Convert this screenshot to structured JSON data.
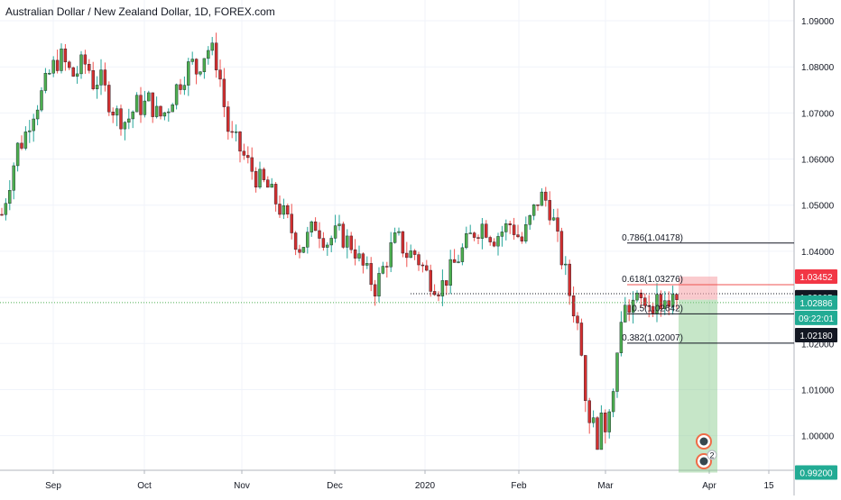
{
  "header": {
    "title": "Australian Dollar / New Zealand Dollar, 1D, FOREX.com"
  },
  "colors": {
    "up": "#26a69a",
    "up_fill": "#4caf50",
    "down": "#ef5350",
    "down_fill": "#d32f2f",
    "red_tag": "#f23645",
    "green_tag": "#22ab94",
    "black_tag": "#131722",
    "grid": "#f0f3fa"
  },
  "chart_data": {
    "type": "candlestick",
    "title": "Australian Dollar / New Zealand Dollar, 1D, FOREX.com",
    "y_axis": {
      "ylim": [
        0.9925,
        1.0945
      ],
      "ticks": [
        "1.09000",
        "1.08000",
        "1.07000",
        "1.06000",
        "1.05000",
        "1.04000",
        "1.03000",
        "1.02000",
        "1.01000",
        "1.00000"
      ],
      "tick_values": [
        1.09,
        1.08,
        1.07,
        1.06,
        1.05,
        1.04,
        1.03,
        1.02,
        1.01,
        1.0
      ]
    },
    "x_axis": {
      "labels": [
        "Sep",
        "Oct",
        "Nov",
        "Dec",
        "2020",
        "Feb",
        "Mar",
        "Apr",
        "15"
      ]
    },
    "price_path": [
      [
        0,
        1.048
      ],
      [
        6,
        1.053
      ],
      [
        12,
        1.058
      ],
      [
        18,
        1.063
      ],
      [
        24,
        1.064
      ],
      [
        30,
        1.068
      ],
      [
        36,
        1.071
      ],
      [
        42,
        1.073
      ],
      [
        48,
        1.076
      ],
      [
        54,
        1.079
      ],
      [
        60,
        1.081
      ],
      [
        66,
        1.082
      ],
      [
        72,
        1.08
      ],
      [
        78,
        1.078
      ],
      [
        84,
        1.079
      ],
      [
        90,
        1.081
      ],
      [
        96,
        1.08
      ],
      [
        102,
        1.076
      ],
      [
        108,
        1.078
      ],
      [
        114,
        1.075
      ],
      [
        120,
        1.072
      ],
      [
        126,
        1.07
      ],
      [
        132,
        1.069
      ],
      [
        138,
        1.068
      ],
      [
        144,
        1.07
      ],
      [
        150,
        1.072
      ],
      [
        156,
        1.071
      ],
      [
        162,
        1.073
      ],
      [
        168,
        1.071
      ],
      [
        174,
        1.069
      ],
      [
        180,
        1.07
      ],
      [
        186,
        1.072
      ],
      [
        192,
        1.075
      ],
      [
        198,
        1.077
      ],
      [
        204,
        1.079
      ],
      [
        210,
        1.081
      ],
      [
        216,
        1.079
      ],
      [
        222,
        1.082
      ],
      [
        228,
        1.084
      ],
      [
        234,
        1.083
      ],
      [
        240,
        1.08
      ],
      [
        246,
        1.072
      ],
      [
        252,
        1.065
      ],
      [
        258,
        1.064
      ],
      [
        264,
        1.062
      ],
      [
        270,
        1.06
      ],
      [
        276,
        1.058
      ],
      [
        282,
        1.056
      ],
      [
        288,
        1.055
      ],
      [
        294,
        1.054
      ],
      [
        300,
        1.052
      ],
      [
        306,
        1.05
      ],
      [
        312,
        1.048
      ],
      [
        318,
        1.046
      ],
      [
        324,
        1.043
      ],
      [
        330,
        1.041
      ],
      [
        336,
        1.042
      ],
      [
        342,
        1.044
      ],
      [
        348,
        1.046
      ],
      [
        354,
        1.044
      ],
      [
        360,
        1.042
      ],
      [
        366,
        1.043
      ],
      [
        372,
        1.044
      ],
      [
        378,
        1.043
      ],
      [
        384,
        1.042
      ],
      [
        390,
        1.041
      ],
      [
        396,
        1.038
      ],
      [
        402,
        1.036
      ],
      [
        408,
        1.034
      ],
      [
        414,
        1.032
      ],
      [
        420,
        1.035
      ],
      [
        426,
        1.038
      ],
      [
        432,
        1.041
      ],
      [
        438,
        1.043
      ],
      [
        444,
        1.041
      ],
      [
        450,
        1.039
      ],
      [
        456,
        1.04
      ],
      [
        462,
        1.038
      ],
      [
        468,
        1.036
      ],
      [
        474,
        1.034
      ],
      [
        480,
        1.033
      ],
      [
        486,
        1.032
      ],
      [
        492,
        1.034
      ],
      [
        498,
        1.036
      ],
      [
        504,
        1.038
      ],
      [
        510,
        1.04
      ],
      [
        516,
        1.042
      ],
      [
        522,
        1.044
      ],
      [
        528,
        1.045
      ],
      [
        534,
        1.046
      ],
      [
        540,
        1.044
      ],
      [
        546,
        1.043
      ],
      [
        552,
        1.044
      ],
      [
        558,
        1.045
      ],
      [
        564,
        1.046
      ],
      [
        570,
        1.044
      ],
      [
        576,
        1.042
      ],
      [
        582,
        1.045
      ],
      [
        588,
        1.048
      ],
      [
        594,
        1.051
      ],
      [
        600,
        1.052
      ],
      [
        606,
        1.05
      ],
      [
        612,
        1.046
      ],
      [
        618,
        1.04
      ],
      [
        624,
        1.036
      ],
      [
        630,
        1.03
      ],
      [
        636,
        1.026
      ],
      [
        642,
        1.02
      ],
      [
        648,
        1.012
      ],
      [
        654,
        1.006
      ],
      [
        660,
        1.003
      ],
      [
        666,
        1.004
      ],
      [
        672,
        1.01
      ],
      [
        678,
        1.016
      ],
      [
        684,
        1.022
      ],
      [
        690,
        1.026
      ],
      [
        696,
        1.029
      ]
    ],
    "fibonacci": [
      {
        "label": "0.786(1.04178)",
        "value": 1.04178
      },
      {
        "label": "0.618(1.03276)",
        "value": 1.03276,
        "color": "#ef5350"
      },
      {
        "label": "0.5(1.02642)",
        "value": 1.02642
      },
      {
        "label": "0.382(1.02007)",
        "value": 1.02007
      }
    ],
    "support_line": 1.0308,
    "price_tags": [
      {
        "label": "1.03452",
        "value": 1.03452,
        "color": "#f23645"
      },
      {
        "label": "1.03005",
        "value": 1.03005,
        "color": "#131722"
      },
      {
        "label": "1.02886",
        "value": 1.02886,
        "color": "#22ab94"
      },
      {
        "label": "09:22:01",
        "value": 1.02615,
        "color": "#22ab94"
      },
      {
        "label": "1.02180",
        "value": 1.0218,
        "color": "#131722"
      },
      {
        "label": "0.99200",
        "value": 0.992,
        "color": "#22ab94"
      }
    ],
    "position": {
      "entry": 1.0295,
      "target": 0.992,
      "stop": 1.03452
    },
    "event_markers": [
      {
        "badge": "2"
      }
    ]
  }
}
